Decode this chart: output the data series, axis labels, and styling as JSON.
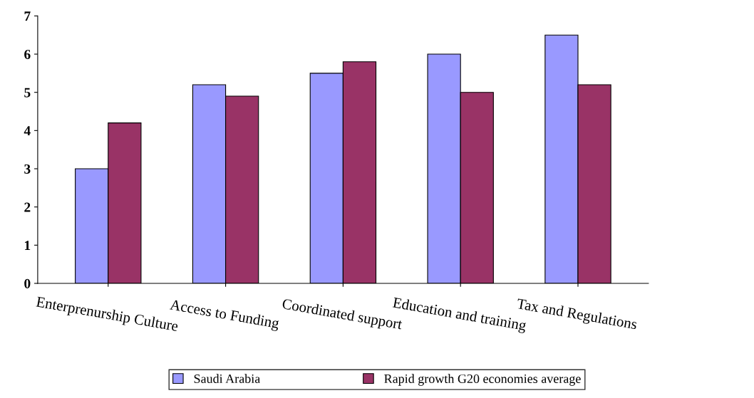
{
  "chart_data": {
    "type": "bar",
    "categories": [
      "Enterprenurship Culture",
      "Access to Funding",
      "Coordinated support",
      "Education and training",
      "Tax and Regulations"
    ],
    "series": [
      {
        "name": "Saudi Arabia",
        "color": "#9999ff",
        "values": [
          3,
          5.2,
          5.5,
          6,
          6.5
        ]
      },
      {
        "name": "Rapid growth G20 economies average",
        "color": "#993366",
        "values": [
          4.2,
          4.9,
          5.8,
          5,
          5.2
        ]
      }
    ],
    "ylim": [
      0,
      7
    ],
    "yticks": [
      0,
      1,
      2,
      3,
      4,
      5,
      6,
      7
    ],
    "grid": false,
    "legend": "bottom"
  }
}
